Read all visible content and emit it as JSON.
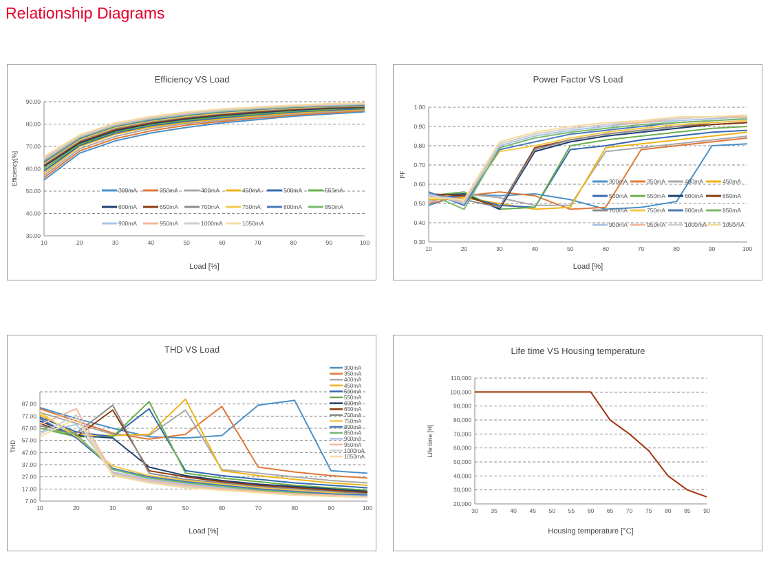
{
  "page": {
    "title": "Relationship Diagrams"
  },
  "chart_data": [
    {
      "id": "efficiency",
      "type": "line",
      "title": "Efficiency VS Load",
      "xlabel": "Load [%]",
      "ylabel": "Efficiency[%]",
      "xlim": [
        10,
        100
      ],
      "ylim": [
        30,
        90
      ],
      "y_decimals": 2,
      "yticks": [
        30,
        40,
        50,
        60,
        70,
        80,
        90
      ],
      "xticks": [
        10,
        20,
        30,
        40,
        50,
        60,
        70,
        80,
        90,
        100
      ],
      "grid": "horizontal-dashed",
      "legend": "inside-lower",
      "x": [
        10,
        20,
        30,
        40,
        50,
        60,
        70,
        80,
        90,
        100
      ],
      "series": [
        {
          "name": "300mA",
          "color": "#4a90c8",
          "values": [
            55,
            67,
            72.5,
            76,
            78.5,
            80.5,
            82,
            83.5,
            84.5,
            85.5
          ]
        },
        {
          "name": "350mA",
          "color": "#e0783a",
          "values": [
            56,
            68,
            73.5,
            77,
            79.5,
            81.2,
            82.7,
            84,
            85,
            86
          ]
        },
        {
          "name": "400mA",
          "color": "#a8a8a8",
          "values": [
            57,
            69,
            74.5,
            78,
            80.2,
            81.8,
            83.2,
            84.5,
            85.5,
            86.3
          ]
        },
        {
          "name": "450mA",
          "color": "#f0b419",
          "values": [
            58,
            70,
            75.5,
            78.7,
            80.8,
            82.4,
            83.7,
            85,
            85.9,
            86.6
          ]
        },
        {
          "name": "500mA",
          "color": "#3569b0",
          "values": [
            59,
            70.5,
            76,
            79.3,
            81.3,
            82.9,
            84.2,
            85.4,
            86.2,
            86.9
          ]
        },
        {
          "name": "550mA",
          "color": "#6ab04c",
          "values": [
            60,
            71,
            76.5,
            79.8,
            81.8,
            83.4,
            84.6,
            85.8,
            86.6,
            87.2
          ]
        },
        {
          "name": "600mA",
          "color": "#1f3f6e",
          "values": [
            61,
            71.5,
            77,
            80.2,
            82.3,
            83.9,
            85.1,
            86.2,
            87,
            87.5
          ]
        },
        {
          "name": "650mA",
          "color": "#8b3a0f",
          "values": [
            61.5,
            72,
            77.5,
            80.6,
            82.7,
            84.3,
            85.5,
            86.6,
            87.3,
            87.8
          ]
        },
        {
          "name": "700mA",
          "color": "#8c8c8c",
          "values": [
            62,
            72.5,
            78,
            81,
            83.1,
            84.7,
            85.9,
            86.9,
            87.6,
            88
          ]
        },
        {
          "name": "750mA",
          "color": "#f5c94a",
          "values": [
            62.5,
            73,
            78.5,
            81.4,
            83.5,
            85,
            86.2,
            87.2,
            87.9,
            88.3
          ]
        },
        {
          "name": "800mA",
          "color": "#4a7ab8",
          "values": [
            63,
            73.5,
            79,
            81.8,
            83.9,
            85.4,
            86.5,
            87.5,
            88.1,
            88.5
          ]
        },
        {
          "name": "850mA",
          "color": "#7ab86a",
          "values": [
            63.5,
            74,
            79.3,
            82.2,
            84.2,
            85.7,
            86.8,
            87.7,
            88.3,
            88.7
          ]
        },
        {
          "name": "900mA",
          "color": "#a9c4e4",
          "values": [
            64,
            74.3,
            79.6,
            82.5,
            84.5,
            86,
            87.1,
            87.9,
            88.5,
            88.9
          ]
        },
        {
          "name": "950mA",
          "color": "#f2b89a",
          "values": [
            64.5,
            74.6,
            79.9,
            82.8,
            84.8,
            86.3,
            87.3,
            88.1,
            88.7,
            89.1
          ]
        },
        {
          "name": "1000mA",
          "color": "#d0d0d0",
          "values": [
            65,
            74.9,
            80.2,
            83.1,
            85.1,
            86.5,
            87.5,
            88.3,
            88.9,
            89.3
          ]
        },
        {
          "name": "1050mA",
          "color": "#f7dca0",
          "values": [
            65.5,
            75.2,
            80.5,
            83.4,
            85.4,
            86.8,
            87.7,
            88.5,
            89.1,
            89.5
          ]
        }
      ]
    },
    {
      "id": "powerfactor",
      "type": "line",
      "title": "Power Factor VS Load",
      "xlabel": "Load [%]",
      "ylabel": "PF",
      "xlim": [
        10,
        100
      ],
      "ylim": [
        0.3,
        1.0
      ],
      "y_decimals": 2,
      "yticks": [
        0.3,
        0.4,
        0.5,
        0.6,
        0.7,
        0.8,
        0.9,
        1.0
      ],
      "xticks": [
        10,
        20,
        30,
        40,
        50,
        60,
        70,
        80,
        90,
        100
      ],
      "grid": "horizontal-dashed",
      "legend": "inside-right",
      "x": [
        10,
        20,
        30,
        40,
        50,
        60,
        70,
        80,
        90,
        100
      ],
      "series": [
        {
          "name": "300mA",
          "color": "#4a90c8",
          "values": [
            0.49,
            0.55,
            0.54,
            0.55,
            0.52,
            0.47,
            0.48,
            0.51,
            0.8,
            0.81
          ]
        },
        {
          "name": "350mA",
          "color": "#e0783a",
          "values": [
            0.5,
            0.54,
            0.56,
            0.54,
            0.47,
            0.48,
            0.78,
            0.8,
            0.82,
            0.84
          ]
        },
        {
          "name": "400mA",
          "color": "#a8a8a8",
          "values": [
            0.51,
            0.55,
            0.53,
            0.49,
            0.49,
            0.77,
            0.79,
            0.81,
            0.83,
            0.85
          ]
        },
        {
          "name": "450mA",
          "color": "#f0b419",
          "values": [
            0.52,
            0.53,
            0.5,
            0.47,
            0.48,
            0.79,
            0.81,
            0.83,
            0.85,
            0.87
          ]
        },
        {
          "name": "500mA",
          "color": "#3569b0",
          "values": [
            0.53,
            0.54,
            0.49,
            0.48,
            0.78,
            0.8,
            0.83,
            0.85,
            0.87,
            0.88
          ]
        },
        {
          "name": "550mA",
          "color": "#6ab04c",
          "values": [
            0.54,
            0.56,
            0.47,
            0.48,
            0.8,
            0.83,
            0.85,
            0.87,
            0.89,
            0.9
          ]
        },
        {
          "name": "600mA",
          "color": "#1f3f6e",
          "values": [
            0.54,
            0.55,
            0.47,
            0.77,
            0.82,
            0.85,
            0.87,
            0.89,
            0.91,
            0.92
          ]
        },
        {
          "name": "650mA",
          "color": "#8b3a0f",
          "values": [
            0.55,
            0.54,
            0.48,
            0.79,
            0.83,
            0.86,
            0.88,
            0.9,
            0.91,
            0.92
          ]
        },
        {
          "name": "700mA",
          "color": "#8c8c8c",
          "values": [
            0.55,
            0.52,
            0.48,
            0.78,
            0.83,
            0.86,
            0.88,
            0.9,
            0.92,
            0.93
          ]
        },
        {
          "name": "750mA",
          "color": "#f5c94a",
          "values": [
            0.55,
            0.5,
            0.77,
            0.8,
            0.84,
            0.87,
            0.89,
            0.91,
            0.92,
            0.93
          ]
        },
        {
          "name": "800mA",
          "color": "#4a7ab8",
          "values": [
            0.56,
            0.49,
            0.78,
            0.82,
            0.86,
            0.88,
            0.9,
            0.92,
            0.93,
            0.94
          ]
        },
        {
          "name": "850mA",
          "color": "#7ab86a",
          "values": [
            0.55,
            0.47,
            0.79,
            0.84,
            0.87,
            0.89,
            0.91,
            0.92,
            0.93,
            0.94
          ]
        },
        {
          "name": "900mA",
          "color": "#a9c4e4",
          "values": [
            0.55,
            0.5,
            0.8,
            0.85,
            0.88,
            0.9,
            0.92,
            0.93,
            0.94,
            0.95
          ]
        },
        {
          "name": "950mA",
          "color": "#f2b89a",
          "values": [
            0.54,
            0.51,
            0.81,
            0.86,
            0.89,
            0.91,
            0.92,
            0.94,
            0.95,
            0.95
          ]
        },
        {
          "name": "1000mA",
          "color": "#d0d0d0",
          "values": [
            0.54,
            0.52,
            0.81,
            0.86,
            0.89,
            0.91,
            0.93,
            0.94,
            0.95,
            0.96
          ]
        },
        {
          "name": "1050mA",
          "color": "#f7dca0",
          "values": [
            0.53,
            0.52,
            0.82,
            0.87,
            0.9,
            0.92,
            0.93,
            0.95,
            0.95,
            0.96
          ]
        }
      ]
    },
    {
      "id": "thd",
      "type": "line",
      "title": "THD VS Load",
      "xlabel": "Load [%]",
      "ylabel": "THD",
      "xlim": [
        10,
        100
      ],
      "ylim": [
        7,
        97
      ],
      "y_decimals": 2,
      "yticks": [
        7,
        17,
        27,
        37,
        47,
        57,
        67,
        77,
        87
      ],
      "xticks": [
        10,
        20,
        30,
        40,
        50,
        60,
        70,
        80,
        90,
        100
      ],
      "grid": "horizontal-dashed",
      "legend": "right-column",
      "x": [
        10,
        20,
        30,
        40,
        50,
        60,
        70,
        80,
        90,
        100
      ],
      "series": [
        {
          "name": "300mA",
          "color": "#4a90c8",
          "values": [
            84,
            75,
            67,
            60,
            59,
            61,
            86,
            90,
            32,
            30
          ]
        },
        {
          "name": "350mA",
          "color": "#e0783a",
          "values": [
            83,
            73,
            63,
            58,
            62,
            85,
            35,
            31,
            28,
            26
          ]
        },
        {
          "name": "400mA",
          "color": "#a8a8a8",
          "values": [
            80,
            71,
            62,
            61,
            82,
            33,
            30,
            27,
            24,
            22
          ]
        },
        {
          "name": "450mA",
          "color": "#f0b419",
          "values": [
            78,
            62,
            61,
            62,
            91,
            32,
            28,
            25,
            22,
            20
          ]
        },
        {
          "name": "500mA",
          "color": "#3569b0",
          "values": [
            76,
            64,
            60,
            83,
            32,
            28,
            25,
            22,
            20,
            18
          ]
        },
        {
          "name": "550mA",
          "color": "#6ab04c",
          "values": [
            67,
            60,
            60,
            89,
            30,
            26,
            23,
            20,
            18,
            16
          ]
        },
        {
          "name": "600mA",
          "color": "#1f3f6e",
          "values": [
            73,
            61,
            59,
            35,
            28,
            24,
            21,
            19,
            17,
            15
          ]
        },
        {
          "name": "650mA",
          "color": "#8b3a0f",
          "values": [
            71,
            60,
            82,
            32,
            27,
            23,
            20,
            18,
            16,
            14
          ]
        },
        {
          "name": "700mA",
          "color": "#8c8c8c",
          "values": [
            69,
            63,
            86,
            30,
            25,
            22,
            19,
            17,
            15,
            13
          ]
        },
        {
          "name": "750mA",
          "color": "#f5c94a",
          "values": [
            80,
            60,
            36,
            28,
            24,
            21,
            18,
            16,
            14,
            12
          ]
        },
        {
          "name": "800mA",
          "color": "#4a7ab8",
          "values": [
            75,
            59,
            34,
            27,
            23,
            20,
            17,
            15,
            13,
            12
          ]
        },
        {
          "name": "850mA",
          "color": "#7ab86a",
          "values": [
            67,
            62,
            33,
            26,
            22,
            19,
            16,
            14,
            12,
            11
          ]
        },
        {
          "name": "900mA",
          "color": "#a9c4e4",
          "values": [
            64,
            70,
            31,
            25,
            21,
            18,
            15,
            13,
            12,
            11
          ]
        },
        {
          "name": "950mA",
          "color": "#f2b89a",
          "values": [
            70,
            83,
            30,
            24,
            20,
            17,
            15,
            13,
            12,
            10
          ]
        },
        {
          "name": "1000mA",
          "color": "#d0d0d0",
          "values": [
            62,
            78,
            29,
            23,
            19,
            16,
            14,
            12,
            11,
            10
          ]
        },
        {
          "name": "1050mA",
          "color": "#f7dca0",
          "values": [
            60,
            75,
            28,
            22,
            18,
            16,
            14,
            12,
            11,
            10
          ]
        }
      ]
    },
    {
      "id": "lifetime",
      "type": "line",
      "title": "Life time VS Housing temperature",
      "xlabel": "Housing temperature [°C]",
      "ylabel": "Life time [H]",
      "xlim": [
        30,
        90
      ],
      "ylim": [
        20000,
        110000
      ],
      "y_thousands": true,
      "yticks": [
        20000,
        30000,
        40000,
        50000,
        60000,
        70000,
        80000,
        90000,
        100000,
        110000
      ],
      "xticks": [
        30,
        35,
        40,
        45,
        50,
        55,
        60,
        65,
        70,
        75,
        80,
        85,
        90
      ],
      "grid": "horizontal-dashed",
      "legend": "none",
      "x": [
        30,
        35,
        40,
        45,
        50,
        55,
        60,
        65,
        70,
        75,
        80,
        85,
        90
      ],
      "series": [
        {
          "name": "",
          "color": "#a0330b",
          "values": [
            100000,
            100000,
            100000,
            100000,
            100000,
            100000,
            100000,
            80000,
            70000,
            58000,
            40000,
            30000,
            25000
          ]
        }
      ]
    }
  ]
}
